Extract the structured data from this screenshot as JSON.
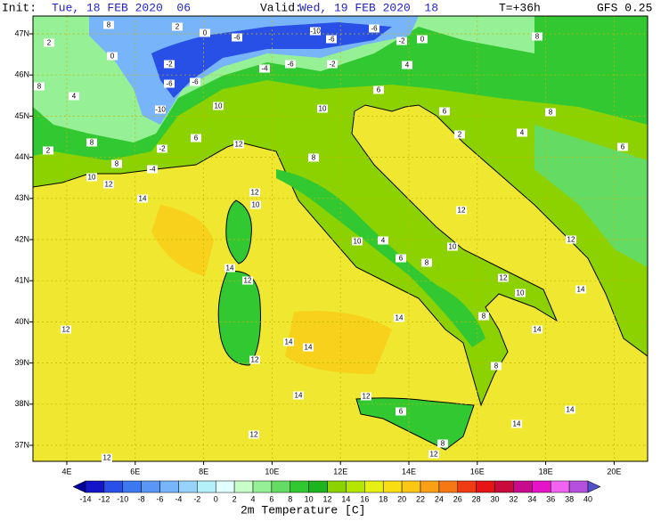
{
  "header": {
    "init_label": "Init:",
    "init_value": "Tue, 18 FEB 2020  06",
    "valid_label": "Valid:",
    "valid_value": "Wed, 19 FEB 2020  18",
    "lead_time": "T=+36h",
    "model": "GFS 0.25"
  },
  "axes": {
    "latitude_labels": [
      "47N",
      "46N",
      "45N",
      "44N",
      "43N",
      "42N",
      "41N",
      "40N",
      "39N",
      "38N",
      "37N"
    ],
    "longitude_labels": [
      "4E",
      "6E",
      "8E",
      "10E",
      "12E",
      "14E",
      "16E",
      "18E",
      "20E"
    ]
  },
  "colorbar": {
    "title": "2m Temperature [C]",
    "labels": [
      -14,
      -12,
      -10,
      -8,
      -6,
      -4,
      -2,
      0,
      2,
      4,
      6,
      8,
      10,
      12,
      14,
      16,
      18,
      20,
      22,
      24,
      26,
      28,
      30,
      32,
      34,
      36,
      38,
      40
    ],
    "colors": [
      "#00009a",
      "#1414c8",
      "#2850e6",
      "#3c78f0",
      "#5a96f5",
      "#78b4fa",
      "#96d2fa",
      "#b4f0fa",
      "#e1ffff",
      "#c8ffc8",
      "#96f096",
      "#64dc64",
      "#32c832",
      "#1eb41e",
      "#8cd200",
      "#b4e600",
      "#e6f014",
      "#fade14",
      "#fac814",
      "#faa014",
      "#f57814",
      "#f03c14",
      "#e61414",
      "#c80a3c",
      "#c80a8c",
      "#e614c8",
      "#f064f0",
      "#b450dc",
      "#5050c8"
    ]
  },
  "contour_labels": [
    8,
    2,
    0,
    -6,
    -10,
    -6,
    -6,
    -2,
    0,
    8,
    2,
    0,
    -2,
    -4,
    -6,
    -2,
    4,
    8,
    4,
    -6,
    -6,
    10,
    10,
    6,
    6,
    2,
    8,
    -10,
    2,
    8,
    8,
    -2,
    -4,
    6,
    12,
    8,
    4,
    6,
    10,
    12,
    14,
    12,
    10,
    12,
    12,
    4,
    10,
    10,
    6,
    8,
    14,
    12,
    12,
    10,
    14,
    8,
    14,
    14,
    12,
    14,
    14,
    8,
    12,
    14,
    12,
    6,
    14,
    14,
    12,
    12,
    12,
    8
  ]
}
